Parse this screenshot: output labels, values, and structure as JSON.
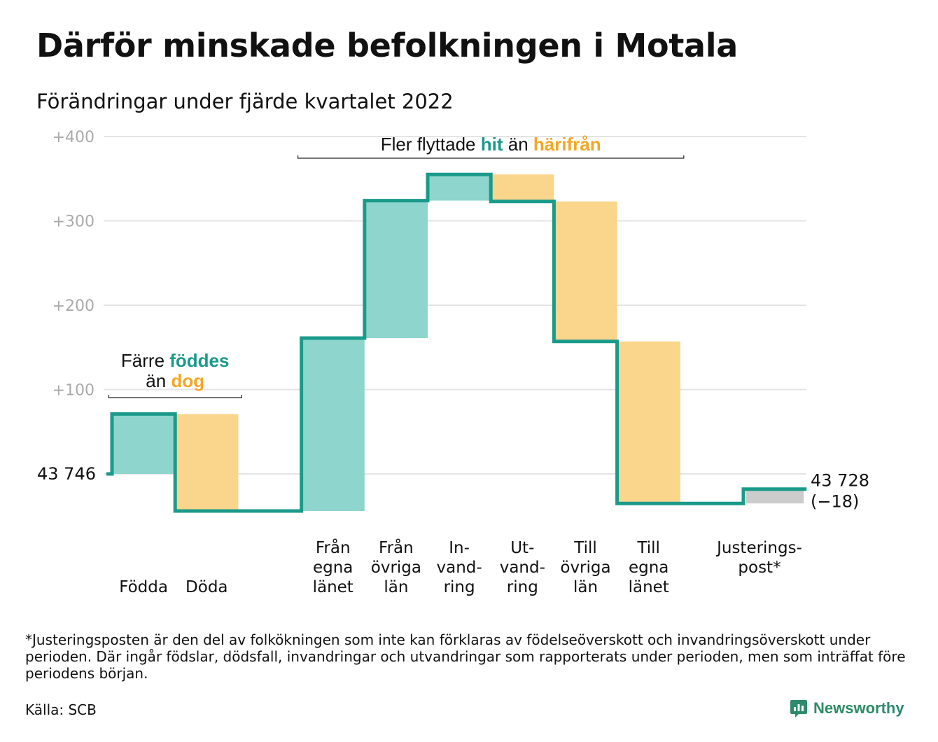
{
  "title": "Därför minskade befolkningen i Motala",
  "subtitle": "Förändringar under fjärde kvartalet 2022",
  "footnote": "*Justeringsposten är den del av folkökningen som inte kan förklaras av födelseöverskott och invandringsöverskott under perioden. Där ingår födslar, dödsfall, invandringar och utvandringar som rapporterats under perioden, men som inträffat före periodens början.",
  "source": "Källa: SCB",
  "brand": {
    "name": "Newsworthy",
    "icon": "bar-chart-speech-icon"
  },
  "colors": {
    "positive": "#8dd5cd",
    "negative": "#fad58c",
    "adjustment": "#cccccc",
    "line": "#1a9a8a",
    "hit": "#1a9a8a",
    "harifran": "#f5a623",
    "grid": "#e4e4e4",
    "axis_text": "#aaaaaa"
  },
  "chart_data": {
    "type": "waterfall",
    "baseline_value": 43746,
    "start_label": "43 746",
    "end_label": "43 728",
    "end_change_label": "(−18)",
    "y_ticks": [
      100,
      200,
      300,
      400
    ],
    "y_tick_labels": [
      "+100",
      "+200",
      "+300",
      "+400"
    ],
    "ylim": [
      -55,
      400
    ],
    "grid": true,
    "steps": [
      {
        "label": [
          "Födda"
        ],
        "value": 71,
        "kind": "positive",
        "label_row": "bottom"
      },
      {
        "label": [
          "Döda"
        ],
        "value": -115,
        "kind": "negative",
        "label_row": "bottom"
      },
      {
        "label": [],
        "value": 0,
        "kind": "none"
      },
      {
        "label": [
          "Från",
          "egna",
          "länet"
        ],
        "value": 205,
        "kind": "positive",
        "label_row": "top"
      },
      {
        "label": [
          "Från",
          "övriga",
          "län"
        ],
        "value": 163,
        "kind": "positive",
        "label_row": "top"
      },
      {
        "label": [
          "In-",
          "vand-",
          "ring"
        ],
        "value": 31,
        "kind": "positive",
        "label_row": "top"
      },
      {
        "label": [
          "Ut-",
          "vand-",
          "ring"
        ],
        "value": -32,
        "kind": "negative",
        "label_row": "top"
      },
      {
        "label": [
          "Till",
          "övriga",
          "län"
        ],
        "value": -166,
        "kind": "negative",
        "label_row": "top"
      },
      {
        "label": [
          "Till",
          "egna",
          "länet"
        ],
        "value": -192,
        "kind": "negative",
        "label_row": "top"
      },
      {
        "label": [],
        "value": 0,
        "kind": "none"
      },
      {
        "label": [
          "Justerings-",
          "post*"
        ],
        "value": 17,
        "kind": "adjustment",
        "label_row": "top"
      }
    ],
    "annotations": [
      {
        "lines": [
          [
            "Färre ",
            "föddes"
          ],
          [
            "än ",
            "dog"
          ]
        ],
        "span": [
          0,
          1
        ]
      },
      {
        "lines": [
          [
            "Fler flyttade ",
            "hit",
            " än ",
            "härifrån"
          ]
        ],
        "span": [
          3,
          8
        ]
      }
    ]
  }
}
